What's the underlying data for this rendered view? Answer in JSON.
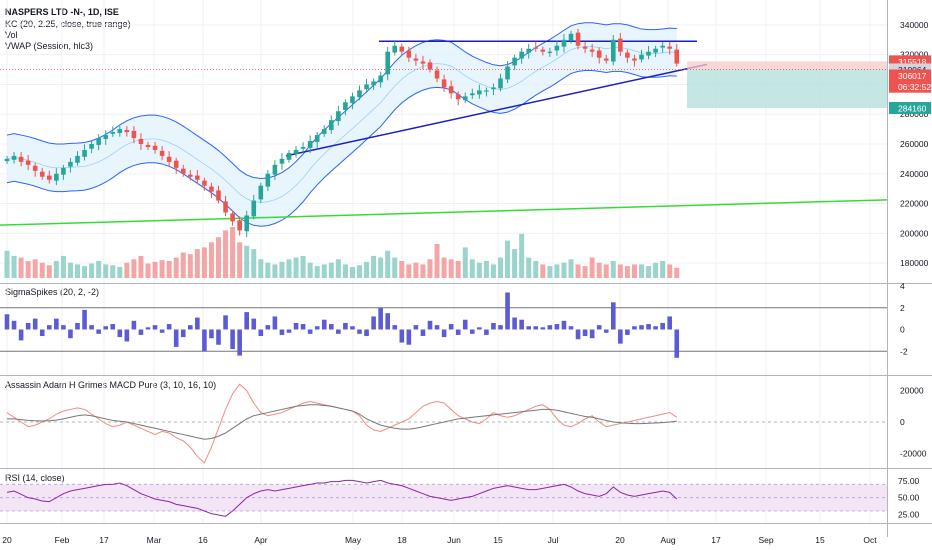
{
  "header": {
    "symbol": "NASPERS LTD -N-, 1D, ISE",
    "indicator_kc": "KC (20, 2.25, close, true range)",
    "indicator_vol": "Vol",
    "indicator_vwap": "VWAP (Session, hlc3)"
  },
  "panes": {
    "sigma_title": "SigmaSpikes (20, 2, -2)",
    "macd_title": "Assassin Adam H Grimes MACD Pure (3, 10, 16, 10)",
    "rsi_title": "RSI (14, close)"
  },
  "colors": {
    "up": "#26a69a",
    "down": "#ef5350",
    "vol_up": "#9bd3cd",
    "vol_down": "#f4a6a6",
    "kc_line": "#2962ff",
    "kc_fill": "#e3f2fd",
    "trendline": "#1a1fbd",
    "green_line": "#33dd33",
    "sigma_bar": "#5b5bd6",
    "macd_fast": "#f28b82",
    "macd_slow": "#777777",
    "rsi_line": "#8e24aa",
    "rsi_band": "#f3e5f5"
  },
  "chart_data": [
    {
      "type": "candlestick",
      "title": "NASPERS LTD -N-, 1D, ISE",
      "ylim": [
        170000,
        350000
      ],
      "y_ticks": [
        180000,
        200000,
        220000,
        240000,
        260000,
        280000,
        300000,
        320000,
        340000
      ],
      "x_tick_labels": [
        "20",
        "Feb",
        "17",
        "Mar",
        "16",
        "Apr",
        "May",
        "18",
        "Jun",
        "15",
        "Jul",
        "20",
        "Aug",
        "17",
        "Sep",
        "15",
        "Oct"
      ],
      "price_labels": [
        {
          "value": 315518,
          "label": "315518",
          "color": "#ef5350"
        },
        {
          "value": 310064,
          "label": "310064",
          "color": "#d1d4dc"
        },
        {
          "value": 306017,
          "label": "306017",
          "color": "#ef5350"
        },
        {
          "value": 298500,
          "label": "06:32:52",
          "color": "#ef5350"
        },
        {
          "value": 284160,
          "label": "284160",
          "color": "#26a69a"
        }
      ],
      "daily_closes": [
        250000,
        252000,
        248000,
        246000,
        242000,
        238000,
        236000,
        240000,
        244000,
        248000,
        252000,
        256000,
        260000,
        264000,
        266000,
        268000,
        270000,
        268000,
        264000,
        260000,
        258000,
        256000,
        252000,
        248000,
        244000,
        240000,
        238000,
        236000,
        232000,
        228000,
        222000,
        214000,
        208000,
        202000,
        212000,
        222000,
        232000,
        240000,
        246000,
        250000,
        254000,
        256000,
        258000,
        262000,
        266000,
        270000,
        276000,
        282000,
        288000,
        292000,
        296000,
        300000,
        302000,
        306000,
        322000,
        326000,
        322000,
        318000,
        316000,
        314000,
        310000,
        304000,
        298000,
        294000,
        290000,
        292000,
        294000,
        296000,
        296000,
        298000,
        304000,
        312000,
        318000,
        322000,
        324000,
        324000,
        322000,
        322000,
        326000,
        330000,
        334000,
        326000,
        324000,
        322000,
        318000,
        316000,
        330000,
        322000,
        318000,
        316000,
        320000,
        322000,
        324000,
        326000,
        324000,
        314000
      ]
    },
    {
      "type": "bar",
      "title": "Vol",
      "values": [
        3.2,
        2.6,
        2.4,
        2.0,
        2.2,
        1.8,
        1.5,
        2.0,
        2.6,
        1.8,
        1.6,
        1.4,
        1.7,
        2.0,
        1.6,
        1.5,
        1.3,
        1.8,
        2.2,
        2.6,
        1.7,
        1.9,
        2.1,
        2.0,
        2.4,
        3.0,
        2.8,
        3.4,
        3.6,
        4.2,
        4.8,
        5.6,
        6.0,
        4.2,
        3.8,
        3.4,
        2.2,
        1.8,
        1.6,
        1.9,
        2.2,
        2.4,
        2.6,
        1.8,
        1.4,
        1.6,
        1.8,
        2.2,
        1.6,
        1.3,
        1.5,
        1.9,
        2.6,
        2.4,
        3.2,
        2.4,
        2.0,
        1.6,
        1.8,
        1.6,
        2.2,
        4.0,
        2.4,
        2.2,
        2.0,
        3.6,
        2.2,
        1.8,
        2.0,
        1.6,
        2.4,
        4.4,
        3.4,
        5.2,
        2.4,
        2.0,
        1.6,
        1.4,
        1.6,
        1.8,
        2.2,
        1.6,
        1.4,
        2.4,
        1.8,
        1.6,
        2.0,
        1.6,
        1.4,
        1.6,
        1.6,
        1.4,
        1.8,
        2.0,
        1.6,
        1.2
      ]
    },
    {
      "type": "bar",
      "title": "SigmaSpikes (20, 2, -2)",
      "ylim": [
        -4,
        4
      ],
      "y_ticks": [
        -2,
        0,
        2,
        4
      ],
      "values": [
        1.4,
        0.8,
        -1.0,
        0.6,
        1.0,
        -0.6,
        0.4,
        1.0,
        0.4,
        -0.8,
        0.6,
        1.8,
        0.4,
        -0.4,
        0.3,
        0.5,
        -0.7,
        -1.1,
        0.8,
        -0.5,
        0.2,
        0.4,
        -0.3,
        0.5,
        -1.6,
        -0.7,
        0.4,
        1.1,
        -2.0,
        -0.8,
        -1.4,
        1.3,
        -1.8,
        -2.4,
        1.6,
        1.0,
        -0.6,
        0.4,
        1.2,
        -0.5,
        -0.3,
        0.6,
        0.5,
        -0.4,
        0.3,
        0.9,
        0.5,
        -0.4,
        0.6,
        0.3,
        -0.4,
        -0.6,
        1.2,
        2.0,
        1.5,
        0.4,
        -1.2,
        -1.4,
        0.4,
        -0.6,
        0.8,
        0.4,
        -0.7,
        0.5,
        -0.5,
        0.9,
        -0.4,
        0.2,
        -0.5,
        0.6,
        0.4,
        3.4,
        1.1,
        0.9,
        0.3,
        0.3,
        0.2,
        0.4,
        0.5,
        0.8,
        0.3,
        -0.9,
        -0.6,
        -0.8,
        0.4,
        -0.3,
        2.5,
        -1.3,
        -0.5,
        0.3,
        0.4,
        0.5,
        0.3,
        0.6,
        1.2,
        -2.6
      ]
    },
    {
      "type": "line",
      "title": "Assassin Adam H Grimes MACD Pure (3, 10, 16, 10)",
      "ylim": [
        -28000,
        28000
      ],
      "y_ticks": [
        -20000,
        0,
        20000
      ],
      "series": [
        {
          "values": [
            6000,
            3000,
            0,
            -3000,
            -2000,
            0,
            2000,
            5000,
            7000,
            8000,
            9000,
            8000,
            5000,
            2000,
            -1000,
            -3000,
            -2000,
            0,
            -2000,
            -4000,
            -6000,
            -8000,
            -6000,
            -7000,
            -10000,
            -12000,
            -16000,
            -22000,
            -26000,
            -16000,
            -4000,
            8000,
            18000,
            24000,
            20000,
            12000,
            6000,
            4000,
            5000,
            6000,
            8000,
            10000,
            12000,
            13000,
            12000,
            11000,
            10000,
            9000,
            8000,
            7000,
            4000,
            -2000,
            -5000,
            -6000,
            -4000,
            -2000,
            0,
            2000,
            6000,
            10000,
            12000,
            13000,
            12000,
            8000,
            4000,
            2000,
            0,
            -1000,
            2000,
            6000,
            4000,
            3000,
            4000,
            6000,
            8000,
            10000,
            11000,
            8000,
            2000,
            -2000,
            -3000,
            -1000,
            2000,
            4000,
            0,
            -3000,
            -2000,
            -1000,
            0,
            1000,
            2000,
            3000,
            4000,
            5000,
            6000,
            3000
          ]
        },
        {
          "values": [
            2000,
            2000,
            1500,
            1000,
            800,
            600,
            800,
            1200,
            2000,
            3000,
            4000,
            4500,
            4000,
            3000,
            2000,
            1000,
            500,
            0,
            -1000,
            -2000,
            -3000,
            -4000,
            -5000,
            -6000,
            -7000,
            -8000,
            -9000,
            -10000,
            -11000,
            -10500,
            -9000,
            -7000,
            -4000,
            -1000,
            2000,
            4000,
            5000,
            6000,
            7000,
            8000,
            9000,
            10000,
            10500,
            11000,
            11000,
            10500,
            10000,
            9000,
            8000,
            7000,
            5000,
            2000,
            0,
            -2000,
            -3000,
            -4000,
            -4500,
            -4500,
            -4000,
            -3000,
            -2000,
            -1000,
            0,
            1000,
            2000,
            2500,
            3000,
            3500,
            4000,
            4500,
            5000,
            5500,
            6000,
            6500,
            7000,
            7500,
            8000,
            8000,
            7500,
            6500,
            5500,
            4500,
            3500,
            3000,
            2000,
            1000,
            0,
            -500,
            -800,
            -1000,
            -1000,
            -800,
            -600,
            -400,
            0,
            500
          ]
        }
      ]
    },
    {
      "type": "line",
      "title": "RSI (14, close)",
      "ylim": [
        15,
        90
      ],
      "y_ticks": [
        25,
        50,
        75
      ],
      "y_tick_labels": [
        "25.00",
        "50.00",
        "75.00"
      ],
      "band": [
        30,
        70
      ],
      "values": [
        58,
        60,
        55,
        50,
        48,
        45,
        44,
        50,
        56,
        60,
        62,
        64,
        66,
        68,
        70,
        70,
        72,
        68,
        62,
        56,
        52,
        48,
        46,
        44,
        40,
        38,
        36,
        34,
        30,
        26,
        24,
        22,
        30,
        40,
        50,
        56,
        60,
        62,
        60,
        62,
        64,
        66,
        68,
        70,
        72,
        72,
        74,
        74,
        76,
        76,
        74,
        72,
        74,
        76,
        72,
        70,
        68,
        64,
        60,
        56,
        52,
        50,
        48,
        46,
        48,
        50,
        52,
        56,
        60,
        64,
        66,
        68,
        66,
        64,
        62,
        62,
        64,
        66,
        68,
        70,
        66,
        60,
        56,
        54,
        52,
        56,
        66,
        58,
        54,
        52,
        54,
        56,
        58,
        60,
        58,
        48
      ]
    }
  ]
}
